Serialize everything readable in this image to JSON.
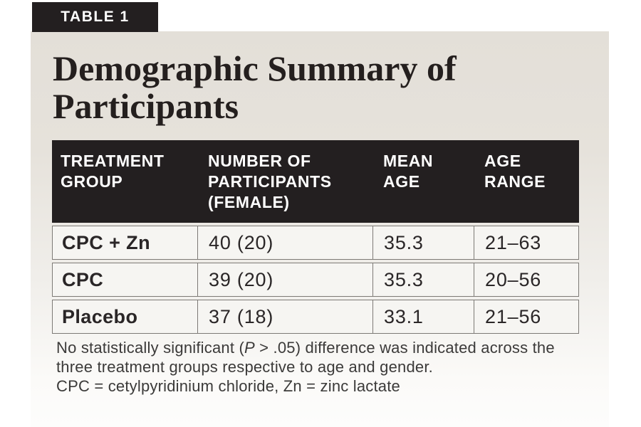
{
  "page": {
    "badge": "TABLE 1",
    "title": "Demographic Summary of Participants"
  },
  "table": {
    "columns": [
      "TREATMENT GROUP",
      "NUMBER OF PARTICIPANTS (FEMALE)",
      "MEAN AGE",
      "AGE RANGE"
    ],
    "rows": [
      {
        "group": "CPC + Zn",
        "participants": "40 (20)",
        "mean_age": "35.3",
        "age_range": "21–63"
      },
      {
        "group": "CPC",
        "participants": "39 (20)",
        "mean_age": "35.3",
        "age_range": "20–56"
      },
      {
        "group": "Placebo",
        "participants": "37 (18)",
        "mean_age": "33.1",
        "age_range": "21–56"
      }
    ]
  },
  "footnote": {
    "significance_prefix": "No statistically significant (",
    "p_symbol": "P",
    "significance_suffix": " > .05) difference was indicated across the three treatment groups respective to age and gender.",
    "abbreviations": "CPC = cetylpyridinium chloride, Zn = zinc lactate"
  },
  "colors": {
    "header_bg": "#231f20",
    "panel_top": "#e3dfd8",
    "panel_bottom": "#fdfdfc",
    "row_bg": "#f6f5f2",
    "border": "#7d7a76"
  }
}
